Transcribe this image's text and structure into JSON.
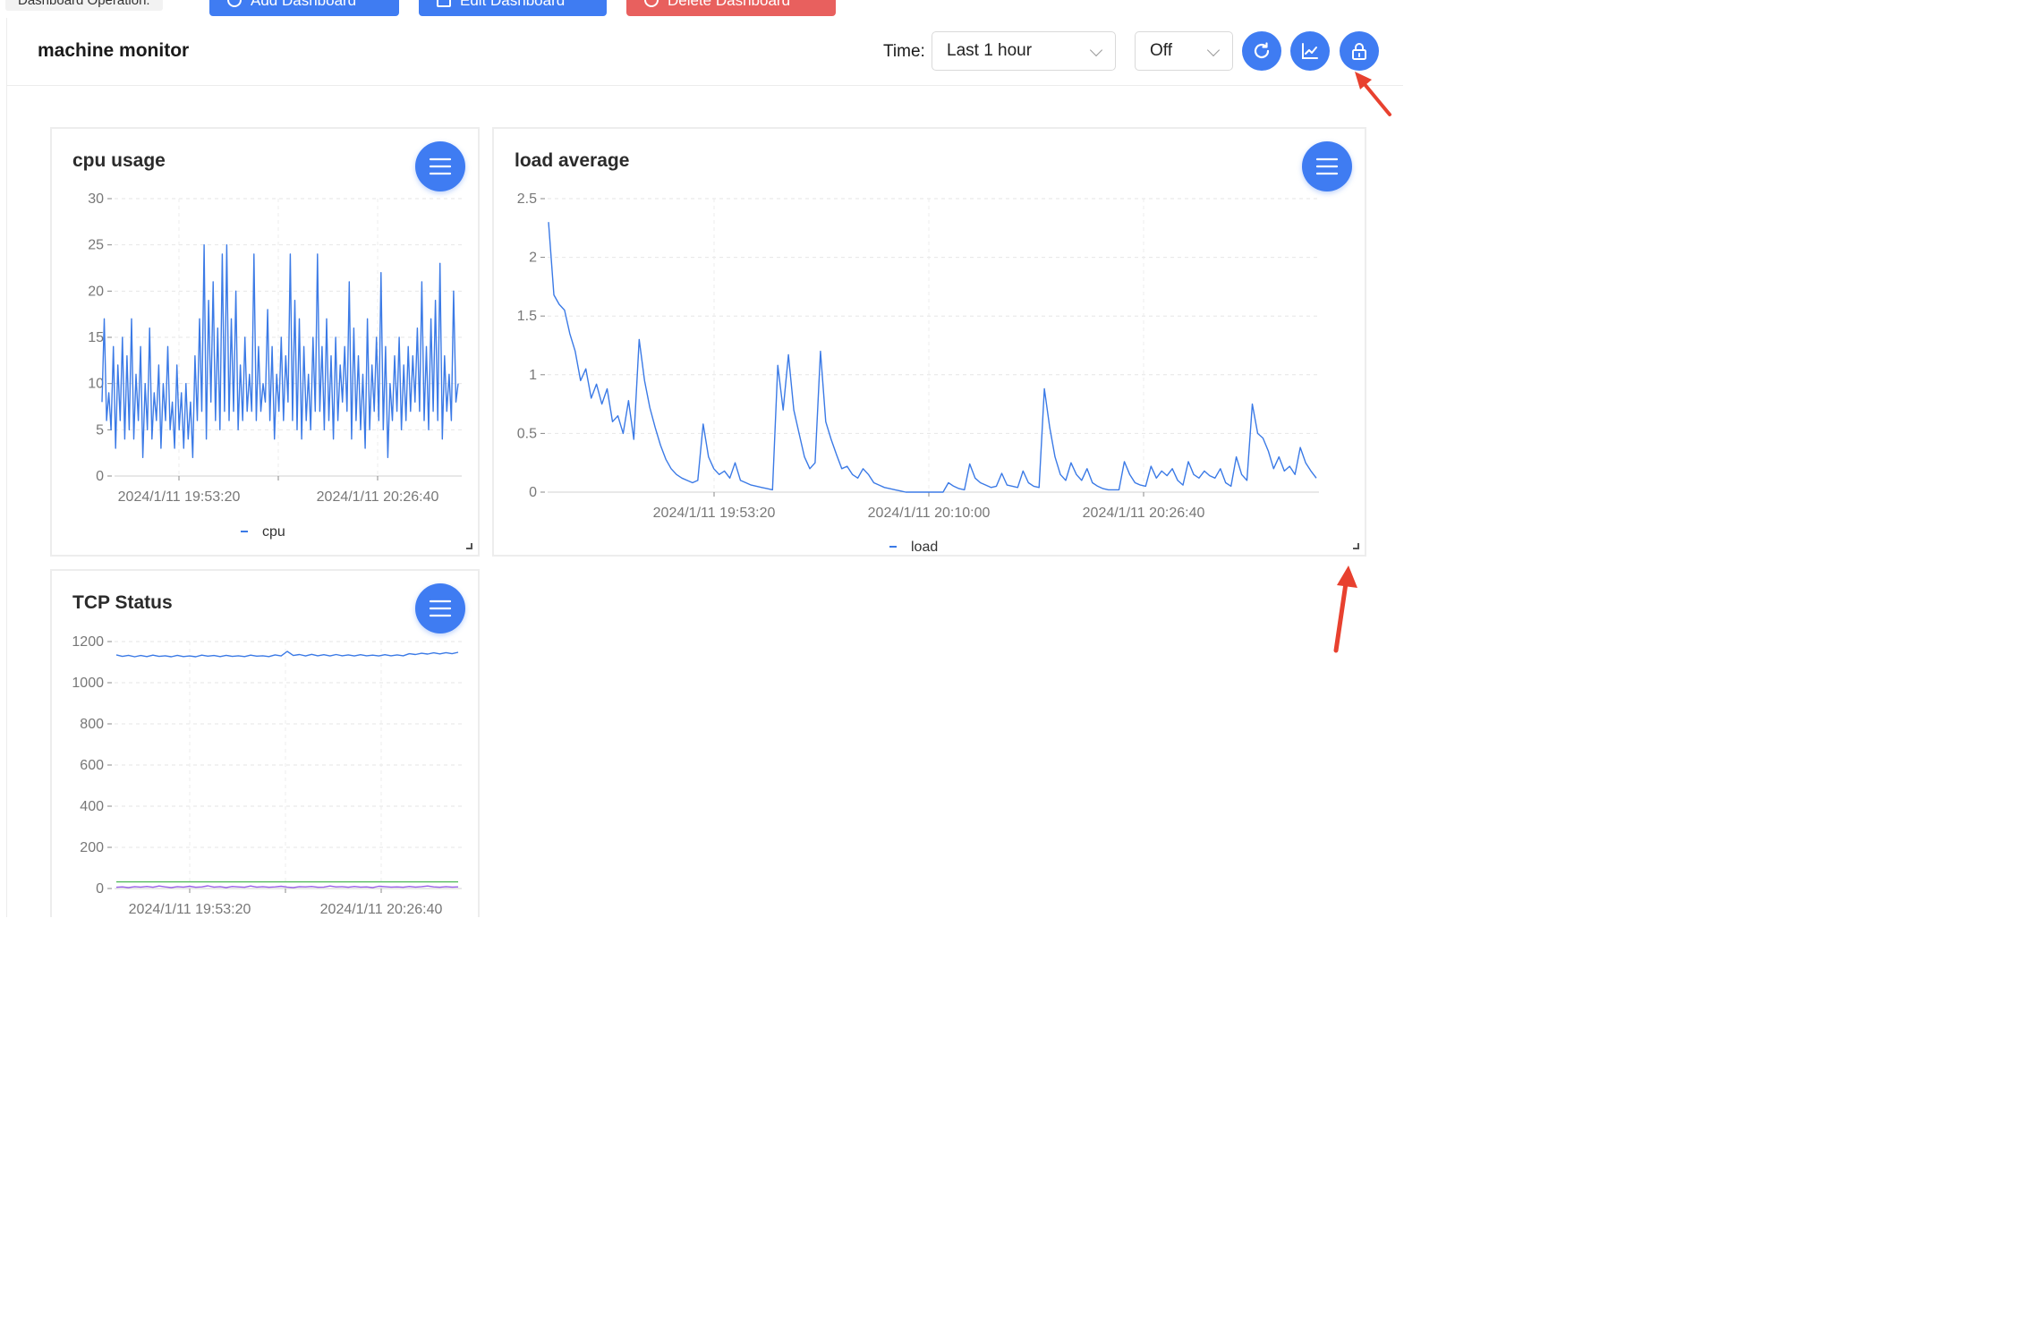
{
  "operations": {
    "label": "Dashboard Operation:",
    "add_label": "Add Dashboard",
    "edit_label": "Edit Dashboard",
    "delete_label": "Delete Dashboard"
  },
  "header": {
    "title": "machine monitor",
    "time_label": "Time:",
    "time_range": "Last 1 hour",
    "refresh": "Off",
    "buttons": [
      "refresh-icon",
      "chart-icon",
      "lock-icon"
    ]
  },
  "colors": {
    "primary": "#3f7cf2",
    "danger": "#e8605e",
    "series_blue": "#3b7ae6",
    "series_green": "#52b95c",
    "series_purple": "#9a62e8",
    "annotation": "#e8412f"
  },
  "panels": [
    {
      "title": "cpu usage",
      "legend": "cpu",
      "chart_data": {
        "type": "line",
        "series": [
          {
            "name": "cpu",
            "values": [
              8,
              17,
              6,
              9,
              5,
              14,
              3,
              12,
              6,
              15,
              4,
              13,
              5,
              17,
              4,
              11,
              6,
              14,
              2,
              10,
              5,
              16,
              4,
              9,
              6,
              12,
              3,
              10,
              6,
              14,
              5,
              8,
              3,
              12,
              5,
              9,
              3,
              10,
              4,
              8,
              2,
              13,
              6,
              17,
              7,
              25,
              4,
              19,
              8,
              21,
              6,
              16,
              5,
              24,
              7,
              25,
              6,
              17,
              7,
              20,
              5,
              12,
              6,
              15,
              7,
              11,
              7,
              24,
              6,
              14,
              7,
              10,
              8,
              18,
              6,
              14,
              4,
              11,
              7,
              15,
              6,
              13,
              8,
              24,
              6,
              19,
              5,
              17,
              4,
              14,
              6,
              11,
              5,
              15,
              7,
              24,
              7,
              14,
              5,
              17,
              6,
              13,
              4,
              15,
              6,
              12,
              8,
              14,
              7,
              21,
              4,
              16,
              6,
              13,
              5,
              11,
              3,
              17,
              5,
              12,
              7,
              15,
              6,
              22,
              5,
              14,
              2,
              10,
              6,
              13,
              7,
              15,
              5,
              12,
              6,
              14,
              7,
              13,
              8,
              16,
              7,
              21,
              6,
              14,
              5,
              17,
              7,
              19,
              6,
              23,
              4,
              13,
              7,
              11,
              6,
              20,
              8,
              10
            ]
          }
        ],
        "x_ticks": [
          "2024/1/11 19:53:20",
          "2024/1/11 20:26:40"
        ],
        "y_ticks": [
          "0",
          "5",
          "10",
          "15",
          "20",
          "25",
          "30"
        ],
        "ylim": [
          0,
          30
        ]
      }
    },
    {
      "title": "load average",
      "legend": "load",
      "chart_data": {
        "type": "line",
        "series": [
          {
            "name": "load",
            "values": [
              2.3,
              1.68,
              1.6,
              1.55,
              1.35,
              1.2,
              0.95,
              1.05,
              0.8,
              0.92,
              0.75,
              0.88,
              0.6,
              0.65,
              0.5,
              0.78,
              0.45,
              1.3,
              0.95,
              0.72,
              0.55,
              0.4,
              0.28,
              0.2,
              0.15,
              0.12,
              0.1,
              0.08,
              0.1,
              0.58,
              0.3,
              0.2,
              0.15,
              0.18,
              0.12,
              0.25,
              0.1,
              0.08,
              0.06,
              0.05,
              0.04,
              0.03,
              0.02,
              1.08,
              0.7,
              1.17,
              0.7,
              0.5,
              0.3,
              0.2,
              0.25,
              1.2,
              0.6,
              0.45,
              0.32,
              0.2,
              0.22,
              0.15,
              0.12,
              0.2,
              0.15,
              0.08,
              0.06,
              0.04,
              0.03,
              0.02,
              0.01,
              0.0,
              0.0,
              0.0,
              0.0,
              0.0,
              0.0,
              0.0,
              0.0,
              0.08,
              0.05,
              0.03,
              0.02,
              0.24,
              0.12,
              0.08,
              0.06,
              0.04,
              0.05,
              0.16,
              0.06,
              0.05,
              0.04,
              0.18,
              0.08,
              0.05,
              0.04,
              0.88,
              0.55,
              0.3,
              0.15,
              0.1,
              0.25,
              0.15,
              0.1,
              0.2,
              0.08,
              0.05,
              0.03,
              0.02,
              0.02,
              0.02,
              0.26,
              0.15,
              0.08,
              0.06,
              0.05,
              0.22,
              0.12,
              0.18,
              0.14,
              0.2,
              0.1,
              0.06,
              0.26,
              0.15,
              0.12,
              0.18,
              0.14,
              0.12,
              0.2,
              0.08,
              0.05,
              0.3,
              0.15,
              0.1,
              0.75,
              0.5,
              0.46,
              0.35,
              0.2,
              0.3,
              0.18,
              0.22,
              0.15,
              0.38,
              0.25,
              0.18,
              0.12
            ]
          }
        ],
        "x_ticks": [
          "2024/1/11 19:53:20",
          "2024/1/11 20:10:00",
          "2024/1/11 20:26:40"
        ],
        "y_ticks": [
          "0",
          "0.5",
          "1",
          "1.5",
          "2",
          "2.5"
        ],
        "ylim": [
          0,
          2.5
        ]
      }
    },
    {
      "title": "TCP Status",
      "chart_data": {
        "type": "line",
        "series": [
          {
            "values": [
              1135,
              1128,
              1133,
              1126,
              1132,
              1127,
              1134,
              1128,
              1131,
              1126,
              1133,
              1127,
              1130,
              1126,
              1134,
              1129,
              1132,
              1127,
              1133,
              1128,
              1131,
              1127,
              1134,
              1129,
              1131,
              1127,
              1135,
              1130,
              1152,
              1132,
              1137,
              1130,
              1138,
              1131,
              1136,
              1130,
              1137,
              1131,
              1135,
              1130,
              1136,
              1131,
              1134,
              1130,
              1136,
              1131,
              1135,
              1131,
              1141,
              1137,
              1143,
              1139,
              1145,
              1140,
              1146,
              1141,
              1148
            ]
          },
          {
            "values": [
              32,
              32,
              32,
              32,
              32,
              32,
              32,
              32,
              32,
              32,
              32,
              32,
              32,
              32,
              32,
              32,
              32,
              32,
              32,
              32,
              32,
              32,
              32,
              32,
              32,
              32,
              32,
              32,
              32,
              32,
              32,
              32,
              32,
              32,
              32,
              32,
              32,
              32,
              32,
              32,
              32,
              32,
              32,
              32,
              32,
              32,
              32,
              32,
              32,
              32,
              32,
              32,
              32,
              32,
              32,
              32,
              32
            ]
          },
          {
            "values": [
              6,
              8,
              5,
              9,
              7,
              10,
              6,
              12,
              8,
              5,
              9,
              7,
              11,
              6,
              8,
              13,
              7,
              9,
              5,
              10,
              8,
              6,
              12,
              7,
              9,
              6,
              8,
              11,
              7,
              5,
              9,
              8,
              10,
              6,
              7,
              12,
              8,
              9,
              6,
              10,
              7,
              8,
              5,
              11,
              9,
              7,
              8,
              6,
              10,
              7,
              9,
              12,
              8,
              6,
              9,
              7,
              8
            ]
          }
        ],
        "x_ticks": [
          "2024/1/11 19:53:20",
          "2024/1/11 20:26:40"
        ],
        "y_ticks": [
          "0",
          "200",
          "400",
          "600",
          "800",
          "1000",
          "1200"
        ],
        "ylim": [
          0,
          1200
        ]
      }
    }
  ]
}
